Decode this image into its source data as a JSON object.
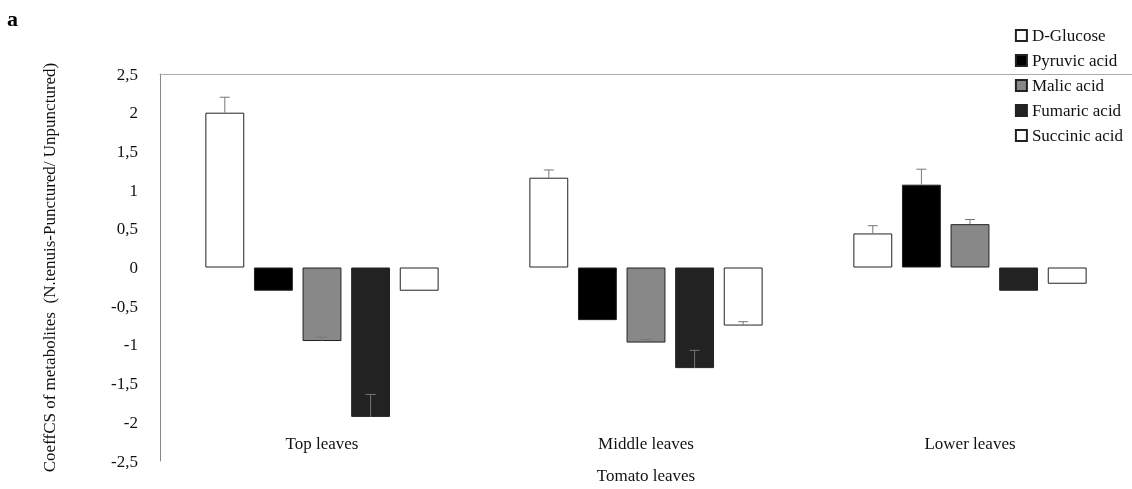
{
  "chart_data": {
    "type": "bar",
    "title": "a",
    "xlabel": "Tomato leaves",
    "ylabel": "CoeffCS of metabolites  (N.tenuis-Punctured/ Unpunctured)",
    "categories": [
      "Top leaves",
      "Middle leaves",
      "Lower leaves"
    ],
    "series": [
      {
        "name": "D-Glucose",
        "color": "#ffffff",
        "values": [
          2.0,
          1.16,
          0.44
        ],
        "errors": [
          [
            2.0,
            2.2
          ],
          [
            1.16,
            1.26
          ],
          [
            0.44,
            0.54
          ]
        ]
      },
      {
        "name": "Pyruvic acid",
        "color": "#000000",
        "values": [
          -0.3,
          -0.68,
          1.07
        ],
        "errors": [
          null,
          null,
          [
            1.07,
            1.27
          ]
        ]
      },
      {
        "name": "Malic acid",
        "color": "#888888",
        "values": [
          -0.95,
          -0.97,
          0.56
        ],
        "errors": [
          [
            -0.95,
            -0.9
          ],
          [
            -0.97,
            -0.93
          ],
          [
            0.56,
            0.62
          ]
        ]
      },
      {
        "name": "Fumaric acid",
        "color": "#222222",
        "values": [
          -1.93,
          -1.3,
          -0.3
        ],
        "errors": [
          [
            -1.93,
            -1.64
          ],
          [
            -1.3,
            -1.07
          ],
          null
        ]
      },
      {
        "name": "Succinic acid",
        "color": "#ffffff",
        "values": [
          -0.3,
          -0.75,
          -0.21
        ],
        "errors": [
          null,
          [
            -0.75,
            -0.7
          ],
          null
        ]
      }
    ],
    "ylim": [
      -2.5,
      2.5
    ],
    "yticks": [
      {
        "value": -2.5,
        "label": "-2,5"
      },
      {
        "value": -2,
        "label": "-2"
      },
      {
        "value": -1.5,
        "label": "-1,5"
      },
      {
        "value": -1,
        "label": "-1"
      },
      {
        "value": -0.5,
        "label": "-0,5"
      },
      {
        "value": 0,
        "label": "0"
      },
      {
        "value": 0.5,
        "label": "0,5"
      },
      {
        "value": 1,
        "label": "1"
      },
      {
        "value": 1.5,
        "label": "1,5"
      },
      {
        "value": 2,
        "label": "2"
      },
      {
        "value": 2.5,
        "label": "2,5"
      }
    ],
    "grid": false,
    "legend": "top right"
  }
}
